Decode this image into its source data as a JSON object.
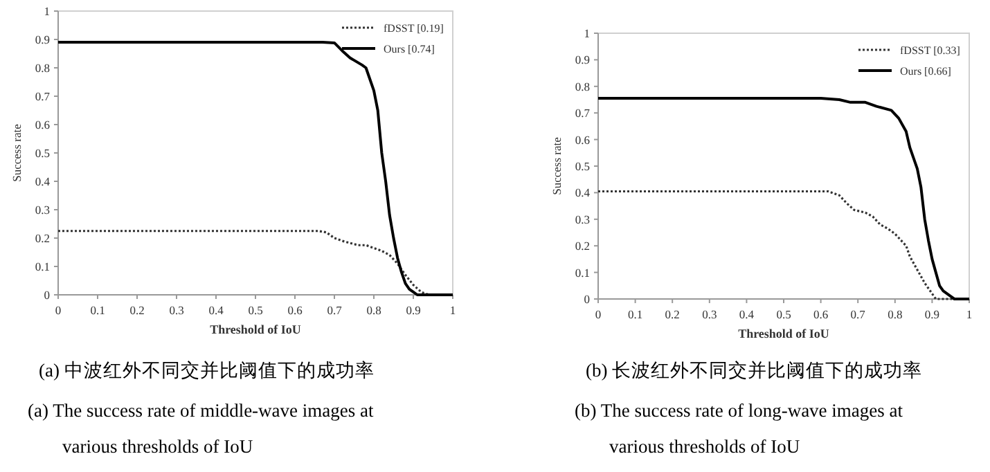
{
  "chart_data": [
    {
      "type": "line",
      "xlabel": "Threshold of IoU",
      "ylabel": "Success rate",
      "xlim": [
        0,
        1
      ],
      "ylim": [
        0,
        1
      ],
      "xticks": [
        0,
        0.1,
        0.2,
        0.3,
        0.4,
        0.5,
        0.6,
        0.7,
        0.8,
        0.9,
        1
      ],
      "yticks": [
        0,
        0.1,
        0.2,
        0.3,
        0.4,
        0.5,
        0.6,
        0.7,
        0.8,
        0.9,
        1
      ],
      "grid": false,
      "legend": "top right",
      "annotations": [
        "(a)  中波红外不同交并比阈值下的成功率",
        "(a) The success rate of middle-wave images at various thresholds of IoU"
      ],
      "series": [
        {
          "name": "fDSST [0.19]",
          "color": "#333333",
          "line_style": "dotted",
          "x": [
            0,
            0.66,
            0.68,
            0.7,
            0.72,
            0.76,
            0.78,
            0.8,
            0.82,
            0.84,
            0.86,
            0.88,
            0.9,
            0.92,
            0.94,
            1
          ],
          "values": [
            0.225,
            0.225,
            0.22,
            0.2,
            0.19,
            0.175,
            0.175,
            0.165,
            0.155,
            0.14,
            0.11,
            0.07,
            0.035,
            0.01,
            0,
            0
          ]
        },
        {
          "name": "Ours [0.74]",
          "color": "#000000",
          "line_style": "solid",
          "x": [
            0,
            0.67,
            0.7,
            0.72,
            0.74,
            0.77,
            0.78,
            0.8,
            0.81,
            0.82,
            0.83,
            0.84,
            0.85,
            0.86,
            0.87,
            0.88,
            0.89,
            0.9,
            0.91,
            1
          ],
          "values": [
            0.89,
            0.89,
            0.888,
            0.86,
            0.835,
            0.81,
            0.8,
            0.72,
            0.65,
            0.5,
            0.4,
            0.28,
            0.2,
            0.13,
            0.08,
            0.04,
            0.02,
            0.01,
            0,
            0
          ]
        }
      ]
    },
    {
      "type": "line",
      "xlabel": "Threshold of IoU",
      "ylabel": "Success rate",
      "xlim": [
        0,
        1
      ],
      "ylim": [
        0,
        1
      ],
      "xticks": [
        0,
        0.1,
        0.2,
        0.3,
        0.4,
        0.5,
        0.6,
        0.7,
        0.8,
        0.9,
        1
      ],
      "yticks": [
        0,
        0.1,
        0.2,
        0.3,
        0.4,
        0.5,
        0.6,
        0.7,
        0.8,
        0.9,
        1
      ],
      "grid": false,
      "legend": "top right",
      "annotations": [
        "(b)  长波红外不同交并比阈值下的成功率",
        "(b) The success rate of long-wave images at various thresholds of IoU"
      ],
      "series": [
        {
          "name": "fDSST [0.33]",
          "color": "#333333",
          "line_style": "dotted",
          "x": [
            0,
            0.62,
            0.65,
            0.67,
            0.69,
            0.72,
            0.74,
            0.76,
            0.78,
            0.8,
            0.82,
            0.83,
            0.84,
            0.86,
            0.88,
            0.9,
            0.91,
            1
          ],
          "values": [
            0.405,
            0.405,
            0.39,
            0.36,
            0.335,
            0.325,
            0.31,
            0.28,
            0.265,
            0.245,
            0.215,
            0.2,
            0.16,
            0.11,
            0.06,
            0.02,
            0,
            0
          ]
        },
        {
          "name": "Ours [0.66]",
          "color": "#000000",
          "line_style": "solid",
          "x": [
            0,
            0.6,
            0.65,
            0.68,
            0.72,
            0.75,
            0.79,
            0.81,
            0.83,
            0.84,
            0.86,
            0.87,
            0.88,
            0.89,
            0.9,
            0.91,
            0.92,
            0.93,
            0.95,
            0.96,
            1
          ],
          "values": [
            0.755,
            0.755,
            0.75,
            0.74,
            0.74,
            0.725,
            0.71,
            0.68,
            0.63,
            0.57,
            0.49,
            0.42,
            0.3,
            0.22,
            0.15,
            0.1,
            0.05,
            0.03,
            0.01,
            0,
            0
          ]
        }
      ]
    }
  ]
}
